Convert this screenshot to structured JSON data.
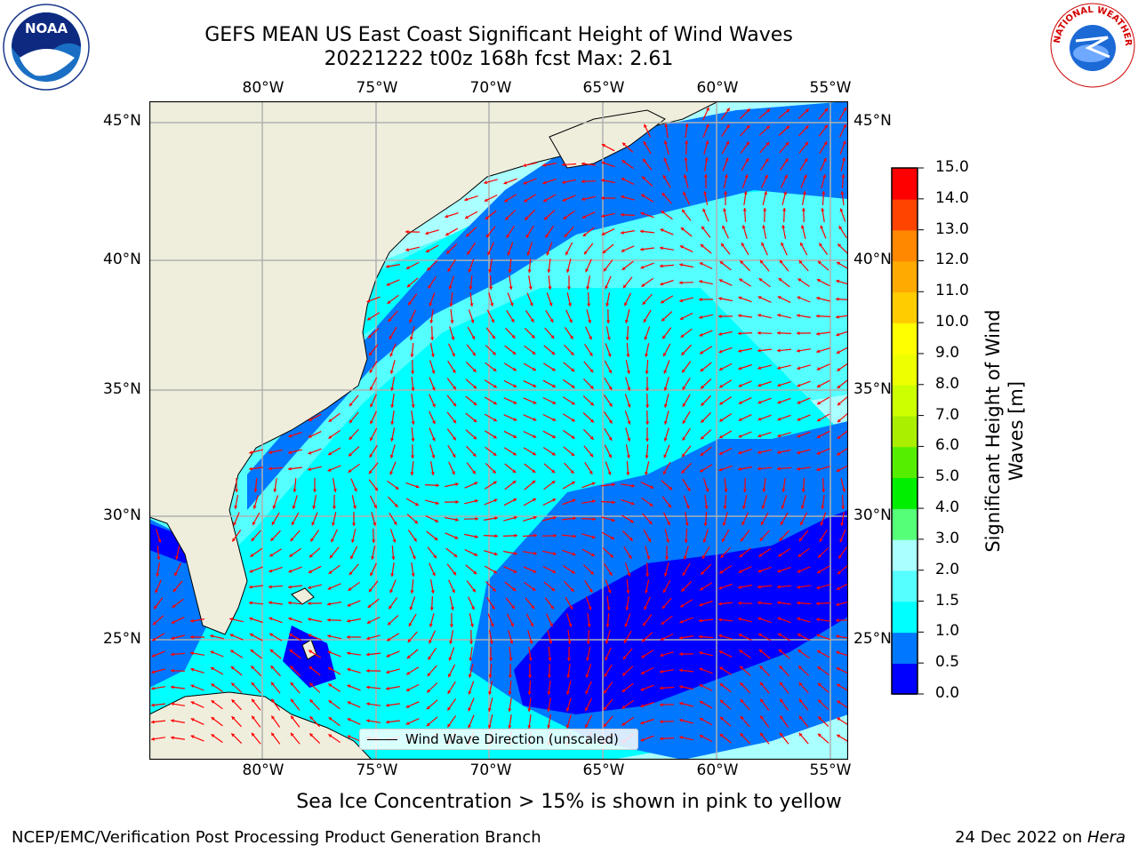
{
  "title": {
    "line1": "GEFS MEAN US East Coast Significant Height of Wind Waves",
    "line2": "20221222 t00z 168h fcst   Max: 2.61"
  },
  "map": {
    "lon_labels": [
      "80°W",
      "75°W",
      "70°W",
      "65°W",
      "60°W",
      "55°W"
    ],
    "lat_labels": [
      "45°N",
      "40°N",
      "35°N",
      "30°N",
      "25°N"
    ],
    "legend_label": "Wind Wave Direction (unscaled)",
    "colors": {
      "land": "#efeedd",
      "coast": "#000000",
      "grid": "#b0b0b0",
      "arrow": "#ff0000"
    }
  },
  "colorbar": {
    "label": "Significant Height of Wind Waves [m]",
    "levels": [
      "0.0",
      "0.5",
      "1.0",
      "1.5",
      "2.0",
      "3.0",
      "4.0",
      "5.0",
      "6.0",
      "7.0",
      "8.0",
      "9.0",
      "10.0",
      "11.0",
      "12.0",
      "13.0",
      "14.0",
      "15.0"
    ],
    "colors": [
      "#0000ff",
      "#0077ff",
      "#00ffff",
      "#55ffff",
      "#aaffff",
      "#55ff77",
      "#00ee00",
      "#55ee00",
      "#aaee00",
      "#ccff00",
      "#eeff00",
      "#ffff00",
      "#ffcc00",
      "#ffaa00",
      "#ff8800",
      "#ff4400",
      "#ff0000"
    ]
  },
  "subtitle": "Sea Ice Concentration > 15% is shown in pink to yellow",
  "footer": {
    "left": "NCEP/EMC/Verification Post Processing Product Generation Branch",
    "right_date": "24 Dec 2022 on ",
    "right_host": "Hera"
  },
  "logos": {
    "noaa": "NOAA",
    "nws": "NATIONAL WEATHER SERVICE"
  }
}
